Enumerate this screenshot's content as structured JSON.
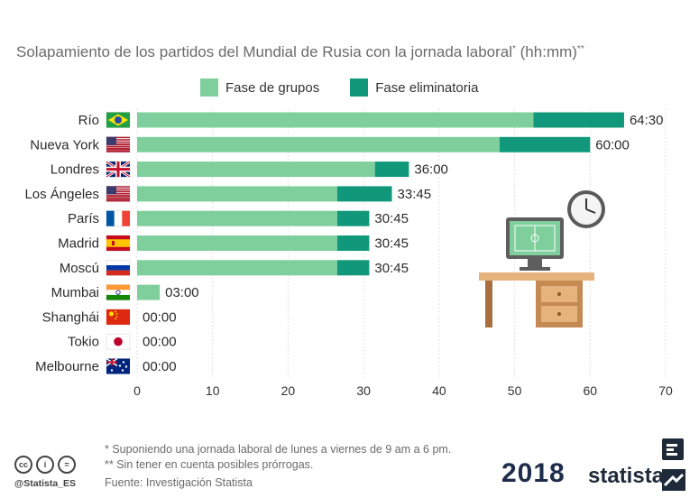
{
  "header": {
    "title_main": "Solapamiento de los partidos del Mundial de Rusia con la jornada laboral",
    "title_sup1": "*",
    "title_unit": " (hh:mm)",
    "title_sup2": "**"
  },
  "legend": {
    "items": [
      {
        "label": "Fase de grupos",
        "color": "#7fcf9d"
      },
      {
        "label": "Fase eliminatoria",
        "color": "#11987a"
      }
    ]
  },
  "chart_data": {
    "type": "bar",
    "orientation": "horizontal",
    "stacked": true,
    "categories": [
      "Río",
      "Nueva York",
      "Londres",
      "Los Ángeles",
      "París",
      "Madrid",
      "Moscú",
      "Mumbai",
      "Shanghái",
      "Tokio",
      "Melbourne"
    ],
    "flags": [
      "brazil-flag-icon",
      "usa-flag-icon",
      "uk-flag-icon",
      "usa-flag-icon",
      "france-flag-icon",
      "spain-flag-icon",
      "russia-flag-icon",
      "india-flag-icon",
      "china-flag-icon",
      "japan-flag-icon",
      "australia-flag-icon"
    ],
    "series": [
      {
        "name": "Fase de grupos",
        "color": "#7fcf9d",
        "values": [
          52.5,
          48,
          31.5,
          26.5,
          26.5,
          26.5,
          26.5,
          3,
          0,
          0,
          0
        ]
      },
      {
        "name": "Fase eliminatoria",
        "color": "#11987a",
        "values": [
          12,
          12,
          4.5,
          7.25,
          4.25,
          4.25,
          4.25,
          0,
          0,
          0,
          0
        ]
      }
    ],
    "data_labels": [
      "64:30",
      "60:00",
      "36:00",
      "33:45",
      "30:45",
      "30:45",
      "30:45",
      "03:00",
      "00:00",
      "00:00",
      "00:00"
    ],
    "xlim": [
      0,
      70
    ],
    "xticks": [
      0,
      10,
      20,
      30,
      40,
      50,
      60,
      70
    ],
    "grid": true
  },
  "footer": {
    "note1": "*   Suponiendo una jornada laboral de lunes a viernes de 9 am a 6 pm.",
    "note2": "** Sin tener en cuenta posibles prórrogas.",
    "source": "Fuente: Investigación Statista",
    "handle": "@Statista_ES",
    "cc_icons": [
      "cc",
      "i",
      "="
    ],
    "logo_year": "2018",
    "logo_brand": "statista"
  }
}
